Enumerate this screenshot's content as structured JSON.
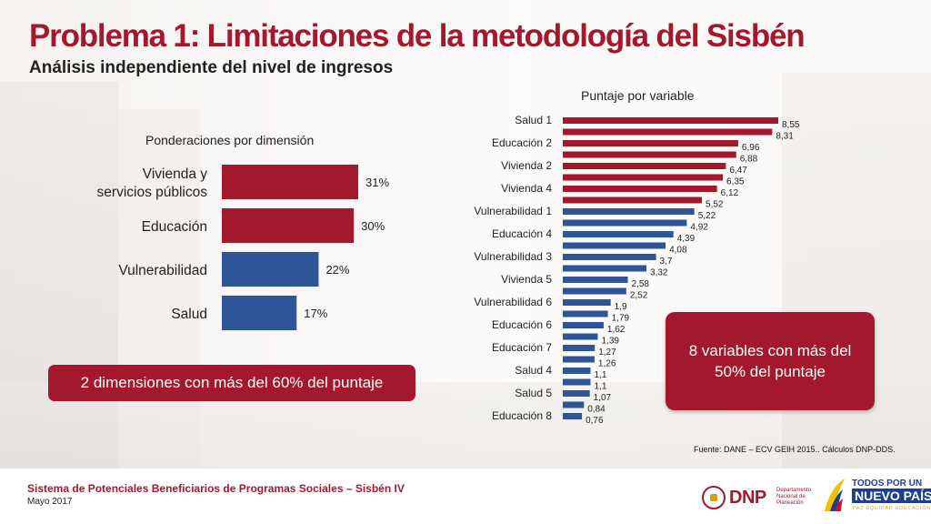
{
  "title": "Problema 1: Limitaciones de la metodología del Sisbén",
  "subtitle": "Análisis independiente del nivel de ingresos",
  "colors": {
    "red": "#a3182c",
    "blue": "#2e5597"
  },
  "chart_data": [
    {
      "type": "bar",
      "orientation": "horizontal",
      "title": "Ponderaciones por dimensión",
      "categories": [
        "Vivienda y servicios públicos",
        "Educación",
        "Vulnerabilidad",
        "Salud"
      ],
      "values": [
        31,
        30,
        22,
        17
      ],
      "value_labels": [
        "31%",
        "30%",
        "22%",
        "17%"
      ],
      "bar_colors": [
        "#a3182c",
        "#a3182c",
        "#2e5597",
        "#2e5597"
      ],
      "xlim": [
        0,
        31
      ]
    },
    {
      "type": "bar",
      "orientation": "horizontal",
      "title": "Puntaje por variable",
      "categories": [
        "Salud 1",
        "",
        "Educación 2",
        "",
        "Vivienda 2",
        "",
        "Vivienda 4",
        "",
        "Vulnerabilidad 1",
        "",
        "Educación 4",
        "",
        "Vulnerabilidad 3",
        "",
        "Vivienda 5",
        "",
        "Vulnerabilidad 6",
        "",
        "Educación 6",
        "",
        "Educación 7",
        "",
        "Salud 4",
        "",
        "Salud 5",
        "",
        "Educación 8"
      ],
      "values": [
        8.55,
        8.31,
        6.96,
        6.88,
        6.47,
        6.35,
        6.12,
        5.52,
        5.22,
        4.92,
        4.39,
        4.08,
        3.7,
        3.32,
        2.58,
        2.52,
        1.9,
        1.79,
        1.62,
        1.39,
        1.27,
        1.26,
        1.1,
        1.1,
        1.07,
        0.84,
        0.76
      ],
      "value_labels": [
        "8,55",
        "8,31",
        "6,96",
        "6,88",
        "6,47",
        "6,35",
        "6,12",
        "5,52",
        "5,22",
        "4,92",
        "4,39",
        "4,08",
        "3,7",
        "3,32",
        "2,58",
        "2,52",
        "1,9",
        "1,79",
        "1,62",
        "1,39",
        "1,27",
        "1,26",
        "1,1",
        "1,1",
        "1,07",
        "0,84",
        "0,76"
      ],
      "red_count": 8,
      "xlim": [
        0,
        8.55
      ]
    }
  ],
  "callouts": {
    "left": "2 dimensiones con más del 60% del puntaje",
    "right": "8 variables con más del 50% del puntaje"
  },
  "source": "Fuente: DANE – ECV GEIH 2015.. Cálculos DNP-DDS.",
  "footer": {
    "line1": "Sistema de Potenciales Beneficiarios de Programas Sociales – Sisbén IV",
    "line2": "Mayo 2017"
  },
  "logos": {
    "dnp": {
      "icon": "colombia-seal-icon",
      "text": "DNP",
      "small": "Departamento Nacional de Planeación"
    },
    "tpn": {
      "icon": "colombia-flag-wing-icon",
      "line1": "TODOS POR UN",
      "line2": "NUEVO PAÍS",
      "line3": "PAZ EQUIDAD EDUCACIÓN"
    }
  }
}
